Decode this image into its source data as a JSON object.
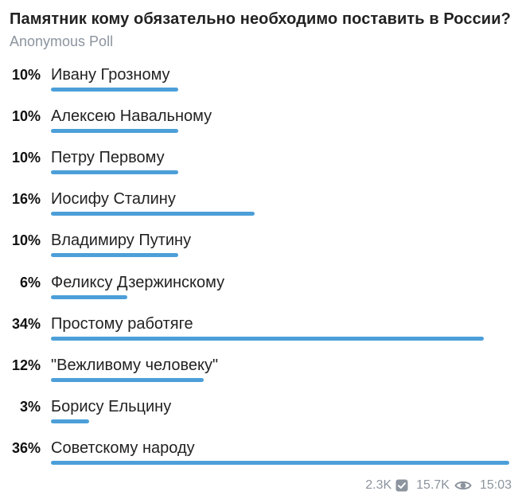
{
  "poll": {
    "question": "Памятник кому обязательно необходимо поставить в России?",
    "type": "Anonymous Poll",
    "bar_color": "#4c9fd9",
    "options": [
      {
        "percent": "10%",
        "label": "Ивану Грозному",
        "value": 10
      },
      {
        "percent": "10%",
        "label": "Алексею Навальному",
        "value": 10
      },
      {
        "percent": "10%",
        "label": "Петру Первому",
        "value": 10
      },
      {
        "percent": "16%",
        "label": "Иосифу Сталину",
        "value": 16
      },
      {
        "percent": "10%",
        "label": "Владимиру Путину",
        "value": 10
      },
      {
        "percent": "6%",
        "label": "Феликсу Дзержинскому",
        "value": 6
      },
      {
        "percent": "34%",
        "label": "Простому работяге",
        "value": 34
      },
      {
        "percent": "12%",
        "label": "\"Вежливому человеку\"",
        "value": 12
      },
      {
        "percent": "3%",
        "label": "Борису Ельцину",
        "value": 3
      },
      {
        "percent": "36%",
        "label": "Советскому народу",
        "value": 36
      }
    ]
  },
  "meta": {
    "voters": "2.3K",
    "views": "15.7K",
    "time": "15:03",
    "voters_icon": "check-box-icon",
    "views_icon": "eye-icon"
  }
}
